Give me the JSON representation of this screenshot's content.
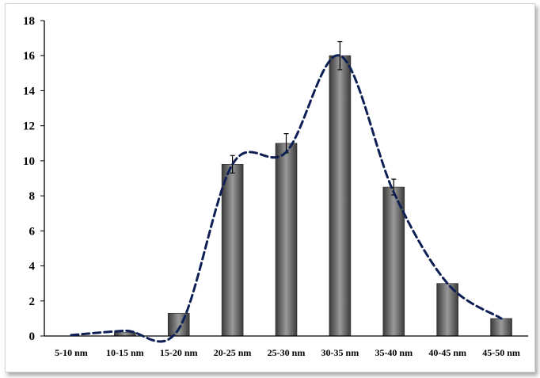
{
  "chart_data": {
    "type": "bar",
    "title": "",
    "xlabel": "",
    "ylabel": "",
    "categories": [
      "5-10 nm",
      "10-15 nm",
      "15-20 nm",
      "20-25 nm",
      "25-30 nm",
      "30-35 nm",
      "35-40 nm",
      "40-45 nm",
      "45-50 nm"
    ],
    "values": [
      0,
      0.2,
      1.3,
      9.8,
      11,
      16,
      8.5,
      3,
      1
    ],
    "error": [
      0,
      0,
      0,
      0.5,
      0.55,
      0.8,
      0.45,
      0,
      0
    ],
    "ylim": [
      0,
      18
    ],
    "yticks": [
      0,
      2,
      4,
      6,
      8,
      10,
      12,
      14,
      16,
      18
    ],
    "trend_line": {
      "style": "dashed",
      "values": [
        0.05,
        0.3,
        0.4,
        9.8,
        10.5,
        16,
        8.2,
        3.0,
        1.0
      ]
    },
    "grid": false,
    "legend": "none",
    "colors": {
      "bar": "#555555",
      "bar_highlight": "#909090",
      "trend_line": "#0d1f54",
      "axis": "#000000",
      "error_bar": "#000000"
    }
  }
}
